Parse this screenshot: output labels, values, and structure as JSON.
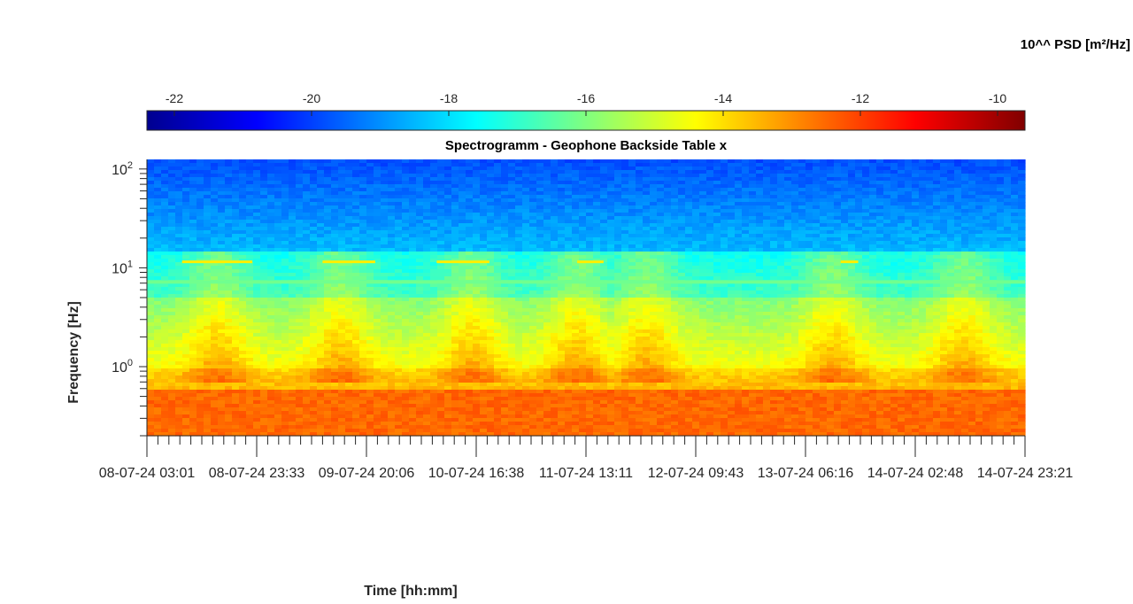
{
  "chart_data": {
    "type": "heatmap",
    "title": "Spectrogramm - Geophone Backside Table x",
    "xlabel": "Time [hh:mm]",
    "ylabel": "Frequency [Hz]",
    "yscale": "log",
    "ylim": [
      0.2,
      125
    ],
    "y_ticks": [
      {
        "value": 1,
        "base": "10",
        "exp": "0"
      },
      {
        "value": 10,
        "base": "10",
        "exp": "1"
      },
      {
        "value": 100,
        "base": "10",
        "exp": "2"
      }
    ],
    "x_ticks": [
      "08-07-24  03:01",
      "08-07-24  23:33",
      "09-07-24  20:06",
      "10-07-24  16:38",
      "11-07-24  13:11",
      "12-07-24  09:43",
      "13-07-24  06:16",
      "14-07-24  02:48",
      "14-07-24  23:21"
    ],
    "colorbar": {
      "label": "10^^ PSD [m²/Hz]",
      "min": -22.4,
      "max": -9.6,
      "ticks": [
        "-22",
        "-20",
        "-18",
        "-16",
        "-14",
        "-12",
        "-10"
      ],
      "colormap": "jet"
    },
    "levels_log10_psd": {
      "frequency_band_0.2_to_0.6_Hz": -12.5,
      "frequency_band_0.6_to_1_Hz": -13.5,
      "frequency_band_1_to_5_Hz": -14.5,
      "frequency_band_5_to_15_Hz": -16.8,
      "frequency_band_15_to_125_Hz": -18.5,
      "line_at_7.2_Hz": -16.2,
      "line_at_11.5_Hz": -14.2
    }
  }
}
